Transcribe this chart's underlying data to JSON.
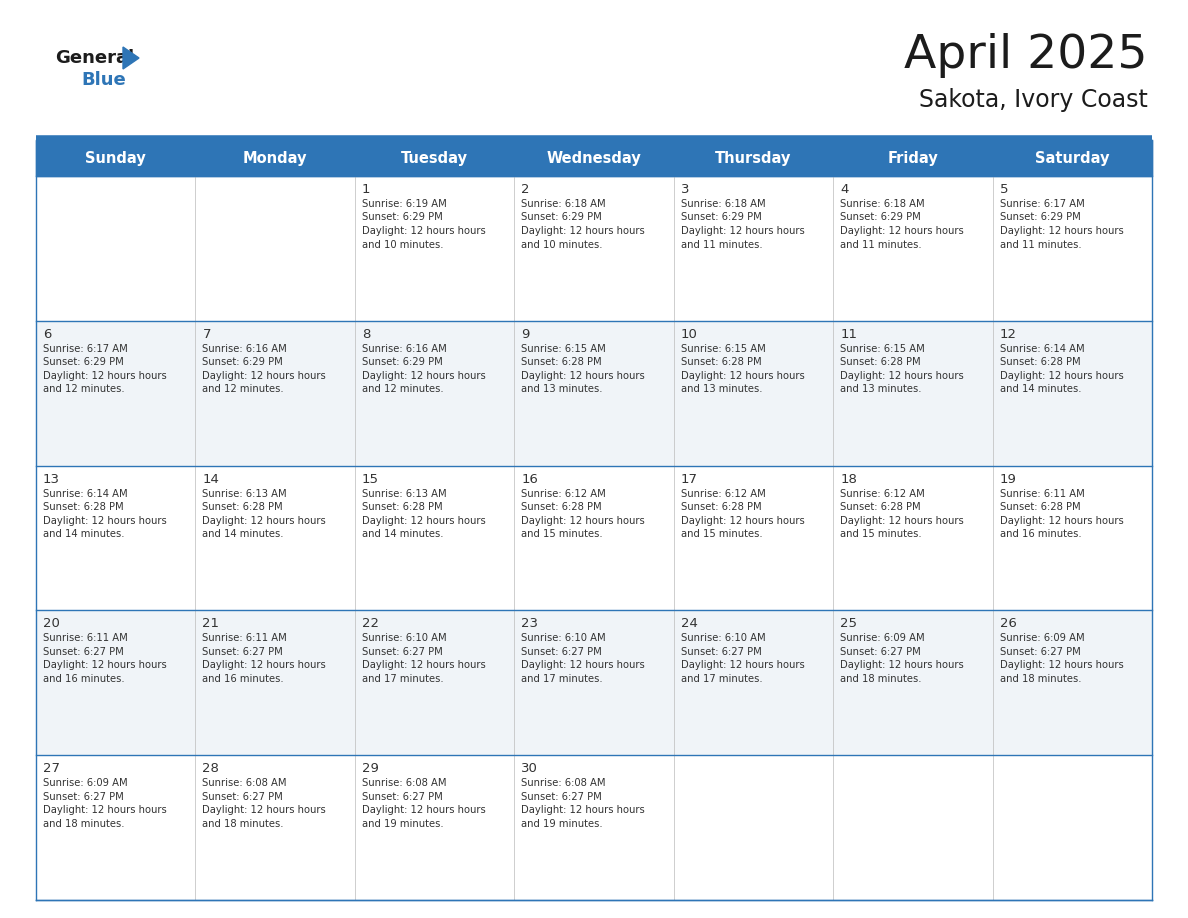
{
  "title": "April 2025",
  "subtitle": "Sakota, Ivory Coast",
  "header_bg": "#2E75B6",
  "header_text_color": "#FFFFFF",
  "header_font_size": 10.5,
  "days_of_week": [
    "Sunday",
    "Monday",
    "Tuesday",
    "Wednesday",
    "Thursday",
    "Friday",
    "Saturday"
  ],
  "title_font_size": 34,
  "subtitle_font_size": 17,
  "bg_color": "#FFFFFF",
  "row_alt_color": "#F0F4F8",
  "row_color": "#FFFFFF",
  "border_color": "#2E75B6",
  "text_color": "#333333",
  "number_font_size": 9.5,
  "detail_font_size": 7.2,
  "logo_general_size": 13,
  "logo_blue_size": 13,
  "calendar": [
    [
      {
        "day": null,
        "sunrise": null,
        "sunset": null,
        "daylight": null
      },
      {
        "day": null,
        "sunrise": null,
        "sunset": null,
        "daylight": null
      },
      {
        "day": 1,
        "sunrise": "6:19 AM",
        "sunset": "6:29 PM",
        "daylight": "12 hours and 10 minutes."
      },
      {
        "day": 2,
        "sunrise": "6:18 AM",
        "sunset": "6:29 PM",
        "daylight": "12 hours and 10 minutes."
      },
      {
        "day": 3,
        "sunrise": "6:18 AM",
        "sunset": "6:29 PM",
        "daylight": "12 hours and 11 minutes."
      },
      {
        "day": 4,
        "sunrise": "6:18 AM",
        "sunset": "6:29 PM",
        "daylight": "12 hours and 11 minutes."
      },
      {
        "day": 5,
        "sunrise": "6:17 AM",
        "sunset": "6:29 PM",
        "daylight": "12 hours and 11 minutes."
      }
    ],
    [
      {
        "day": 6,
        "sunrise": "6:17 AM",
        "sunset": "6:29 PM",
        "daylight": "12 hours and 12 minutes."
      },
      {
        "day": 7,
        "sunrise": "6:16 AM",
        "sunset": "6:29 PM",
        "daylight": "12 hours and 12 minutes."
      },
      {
        "day": 8,
        "sunrise": "6:16 AM",
        "sunset": "6:29 PM",
        "daylight": "12 hours and 12 minutes."
      },
      {
        "day": 9,
        "sunrise": "6:15 AM",
        "sunset": "6:28 PM",
        "daylight": "12 hours and 13 minutes."
      },
      {
        "day": 10,
        "sunrise": "6:15 AM",
        "sunset": "6:28 PM",
        "daylight": "12 hours and 13 minutes."
      },
      {
        "day": 11,
        "sunrise": "6:15 AM",
        "sunset": "6:28 PM",
        "daylight": "12 hours and 13 minutes."
      },
      {
        "day": 12,
        "sunrise": "6:14 AM",
        "sunset": "6:28 PM",
        "daylight": "12 hours and 14 minutes."
      }
    ],
    [
      {
        "day": 13,
        "sunrise": "6:14 AM",
        "sunset": "6:28 PM",
        "daylight": "12 hours and 14 minutes."
      },
      {
        "day": 14,
        "sunrise": "6:13 AM",
        "sunset": "6:28 PM",
        "daylight": "12 hours and 14 minutes."
      },
      {
        "day": 15,
        "sunrise": "6:13 AM",
        "sunset": "6:28 PM",
        "daylight": "12 hours and 14 minutes."
      },
      {
        "day": 16,
        "sunrise": "6:12 AM",
        "sunset": "6:28 PM",
        "daylight": "12 hours and 15 minutes."
      },
      {
        "day": 17,
        "sunrise": "6:12 AM",
        "sunset": "6:28 PM",
        "daylight": "12 hours and 15 minutes."
      },
      {
        "day": 18,
        "sunrise": "6:12 AM",
        "sunset": "6:28 PM",
        "daylight": "12 hours and 15 minutes."
      },
      {
        "day": 19,
        "sunrise": "6:11 AM",
        "sunset": "6:28 PM",
        "daylight": "12 hours and 16 minutes."
      }
    ],
    [
      {
        "day": 20,
        "sunrise": "6:11 AM",
        "sunset": "6:27 PM",
        "daylight": "12 hours and 16 minutes."
      },
      {
        "day": 21,
        "sunrise": "6:11 AM",
        "sunset": "6:27 PM",
        "daylight": "12 hours and 16 minutes."
      },
      {
        "day": 22,
        "sunrise": "6:10 AM",
        "sunset": "6:27 PM",
        "daylight": "12 hours and 17 minutes."
      },
      {
        "day": 23,
        "sunrise": "6:10 AM",
        "sunset": "6:27 PM",
        "daylight": "12 hours and 17 minutes."
      },
      {
        "day": 24,
        "sunrise": "6:10 AM",
        "sunset": "6:27 PM",
        "daylight": "12 hours and 17 minutes."
      },
      {
        "day": 25,
        "sunrise": "6:09 AM",
        "sunset": "6:27 PM",
        "daylight": "12 hours and 18 minutes."
      },
      {
        "day": 26,
        "sunrise": "6:09 AM",
        "sunset": "6:27 PM",
        "daylight": "12 hours and 18 minutes."
      }
    ],
    [
      {
        "day": 27,
        "sunrise": "6:09 AM",
        "sunset": "6:27 PM",
        "daylight": "12 hours and 18 minutes."
      },
      {
        "day": 28,
        "sunrise": "6:08 AM",
        "sunset": "6:27 PM",
        "daylight": "12 hours and 18 minutes."
      },
      {
        "day": 29,
        "sunrise": "6:08 AM",
        "sunset": "6:27 PM",
        "daylight": "12 hours and 19 minutes."
      },
      {
        "day": 30,
        "sunrise": "6:08 AM",
        "sunset": "6:27 PM",
        "daylight": "12 hours and 19 minutes."
      },
      {
        "day": null,
        "sunrise": null,
        "sunset": null,
        "daylight": null
      },
      {
        "day": null,
        "sunrise": null,
        "sunset": null,
        "daylight": null
      },
      {
        "day": null,
        "sunrise": null,
        "sunset": null,
        "daylight": null
      }
    ]
  ]
}
